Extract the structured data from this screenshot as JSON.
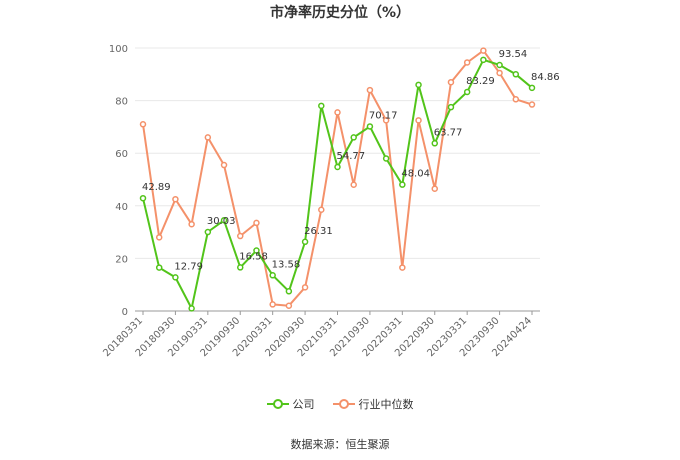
{
  "source_text": "数据来源：恒生聚源",
  "chart_data": {
    "type": "line",
    "title": "市净率历史分位（%）",
    "xlabel": "",
    "ylabel": "",
    "ylim": [
      0,
      100
    ],
    "yticks": [
      0,
      20,
      40,
      60,
      80,
      100
    ],
    "grid": true,
    "legend_position": "bottom",
    "x_tick_labels": [
      "20180331",
      "20180930",
      "20190331",
      "20190930",
      "20200331",
      "20200930",
      "20210331",
      "20210930",
      "20220331",
      "20220930",
      "20230331",
      "20230930",
      "20240424"
    ],
    "series": [
      {
        "name": "公司",
        "color": "#52c41a",
        "values": [
          42.89,
          16.5,
          12.79,
          1.0,
          30.03,
          34.5,
          16.58,
          23.0,
          13.58,
          7.5,
          26.31,
          78.0,
          54.77,
          66.0,
          70.17,
          58.0,
          48.04,
          86.0,
          63.77,
          77.5,
          83.29,
          95.5,
          93.54,
          90.0,
          84.86
        ],
        "labels": {
          "0": "42.89",
          "2": "12.79",
          "4": "30.03",
          "6": "16.58",
          "8": "13.58",
          "10": "26.31",
          "12": "54.77",
          "14": "70.17",
          "16": "48.04",
          "18": "63.77",
          "20": "83.29",
          "22": "93.54",
          "24": "84.86"
        }
      },
      {
        "name": "行业中位数",
        "color": "#f4916a",
        "values": [
          71.0,
          28.0,
          42.5,
          33.0,
          66.0,
          55.5,
          28.5,
          33.5,
          2.5,
          2.0,
          9.0,
          38.5,
          75.5,
          48.0,
          84.0,
          72.5,
          16.5,
          72.5,
          46.5,
          87.0,
          94.5,
          99.0,
          90.5,
          80.5,
          78.5
        ]
      }
    ]
  }
}
